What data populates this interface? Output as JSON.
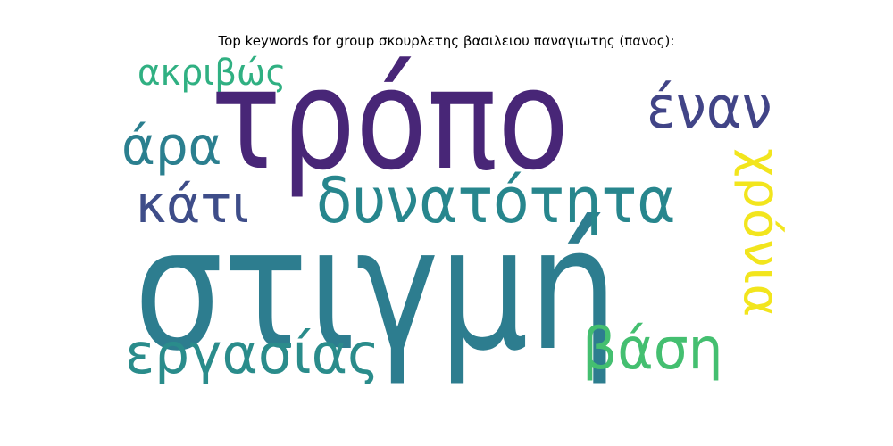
{
  "title": "Top keywords for group σκουρλετης βασιλειου παναγιωτης (πανος):",
  "words": {
    "tropo": {
      "text": "τρόπο",
      "color": "#482677"
    },
    "stigmi": {
      "text": "στιγμή",
      "color": "#2d7d8f"
    },
    "dynatotita": {
      "text": "δυνατότητα",
      "color": "#27868d"
    },
    "ergasias": {
      "text": "εργασίας",
      "color": "#2a8c8b"
    },
    "akrivos": {
      "text": "ακριβώς",
      "color": "#30b082"
    },
    "ara": {
      "text": "άρα",
      "color": "#2b7f8f"
    },
    "kati": {
      "text": "κάτι",
      "color": "#3e4d89"
    },
    "enan": {
      "text": "έναν",
      "color": "#414487"
    },
    "vasi": {
      "text": "βάση",
      "color": "#44bf70"
    },
    "chronia": {
      "text": "χρόνια",
      "color": "#f2e51d"
    }
  }
}
